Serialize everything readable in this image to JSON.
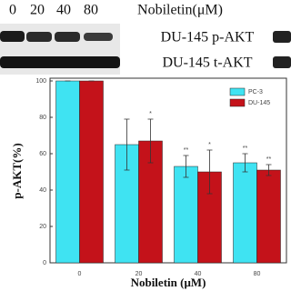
{
  "blot": {
    "lane_labels": [
      "0",
      "20",
      "40",
      "80"
    ],
    "treatment_label": "Nobiletin(μM)",
    "rows": [
      "DU-145 p-AKT",
      "DU-145 t-AKT"
    ]
  },
  "chart_data": {
    "type": "bar",
    "x_label": "Nobiletin (μM)",
    "y_label": "p-AKT(%)",
    "categories": [
      "0",
      "20",
      "40",
      "80"
    ],
    "series": [
      {
        "name": "PC-3",
        "color": "#3fe3f2",
        "values": [
          100,
          65,
          53,
          55
        ],
        "errors": [
          0,
          14,
          6,
          5
        ],
        "annotations": [
          null,
          null,
          "**",
          "**"
        ]
      },
      {
        "name": "DU-145",
        "color": "#c4121a",
        "values": [
          100,
          67,
          50,
          51
        ],
        "errors": [
          0,
          12,
          12,
          3
        ],
        "annotations": [
          null,
          "*",
          "*",
          "**"
        ]
      }
    ],
    "ylim": [
      0,
      100
    ],
    "yticks": [
      0,
      20,
      40,
      60,
      80,
      100
    ],
    "legend": "top-right"
  }
}
